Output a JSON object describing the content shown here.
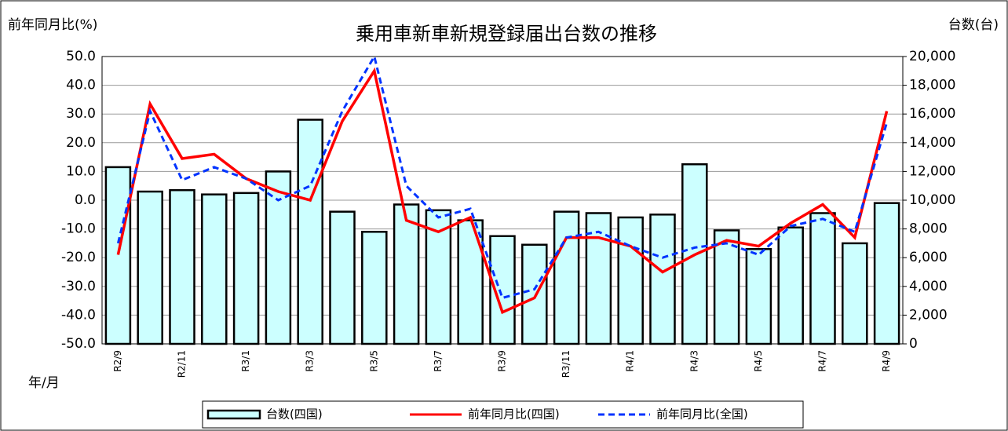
{
  "chart_data": {
    "type": "combo",
    "title": "乗用車新車新規登録届出台数の推移",
    "y_label": "前年同月比(%)",
    "y2_label": "台数(台)",
    "x_label": "年/月",
    "categories": [
      "R2/9",
      null,
      "R2/11",
      null,
      "R3/1",
      null,
      "R3/3",
      null,
      "R3/5",
      null,
      "R3/7",
      null,
      "R3/9",
      null,
      "R3/11",
      null,
      "R4/1",
      null,
      "R4/3",
      null,
      "R4/5",
      null,
      "R4/7",
      null,
      "R4/9"
    ],
    "ylim": [
      -50,
      50
    ],
    "yticks": [
      {
        "value": 50,
        "label": "50.0"
      },
      {
        "value": 40,
        "label": "40.0"
      },
      {
        "value": 30,
        "label": "30.0"
      },
      {
        "value": 20,
        "label": "20.0"
      },
      {
        "value": 10,
        "label": "10.0"
      },
      {
        "value": 0,
        "label": "0.0"
      },
      {
        "value": -10,
        "label": "-10.0"
      },
      {
        "value": -20,
        "label": "-20.0"
      },
      {
        "value": -30,
        "label": "-30.0"
      },
      {
        "value": -40,
        "label": "-40.0"
      },
      {
        "value": -50,
        "label": "-50.0"
      }
    ],
    "y2lim": [
      0,
      20000
    ],
    "y2ticks": [
      {
        "value": 20000,
        "label": "20,000"
      },
      {
        "value": 18000,
        "label": "18,000"
      },
      {
        "value": 16000,
        "label": "16,000"
      },
      {
        "value": 14000,
        "label": "14,000"
      },
      {
        "value": 12000,
        "label": "12,000"
      },
      {
        "value": 10000,
        "label": "10,000"
      },
      {
        "value": 8000,
        "label": "8,000"
      },
      {
        "value": 6000,
        "label": "6,000"
      },
      {
        "value": 4000,
        "label": "4,000"
      },
      {
        "value": 2000,
        "label": "2,000"
      },
      0
    ],
    "grid": true,
    "legend": "bottom",
    "series": [
      {
        "name": "台数(四国)",
        "type": "bar",
        "axis": "y2",
        "color": "#ccffff",
        "values": [
          12300,
          10600,
          10700,
          10400,
          10500,
          12000,
          15600,
          9200,
          7800,
          9700,
          9300,
          8600,
          7500,
          6900,
          9200,
          9100,
          8800,
          9000,
          12500,
          7900,
          6600,
          8100,
          9100,
          7000,
          9800
        ]
      },
      {
        "name": "前年同月比(四国)",
        "type": "line",
        "color": "#ff0000",
        "dashed": false,
        "values": [
          -19,
          33.5,
          14.5,
          16,
          7.5,
          3,
          0,
          27.5,
          45,
          -7,
          -11,
          -6,
          -39,
          -34,
          -13,
          -13,
          -16,
          -25,
          -19,
          -14,
          -16,
          -8,
          -1.5,
          -13,
          31
        ]
      },
      {
        "name": "前年同月比(全国)",
        "type": "line",
        "color": "#0033ff",
        "dashed": true,
        "values": [
          -15,
          31,
          7,
          11.5,
          7.5,
          0,
          5,
          31,
          50,
          5,
          -6,
          -3,
          -34,
          -31,
          -13,
          -11,
          -16,
          -20,
          -16.5,
          -15,
          -19,
          -9,
          -6.5,
          -11,
          27
        ]
      }
    ]
  }
}
